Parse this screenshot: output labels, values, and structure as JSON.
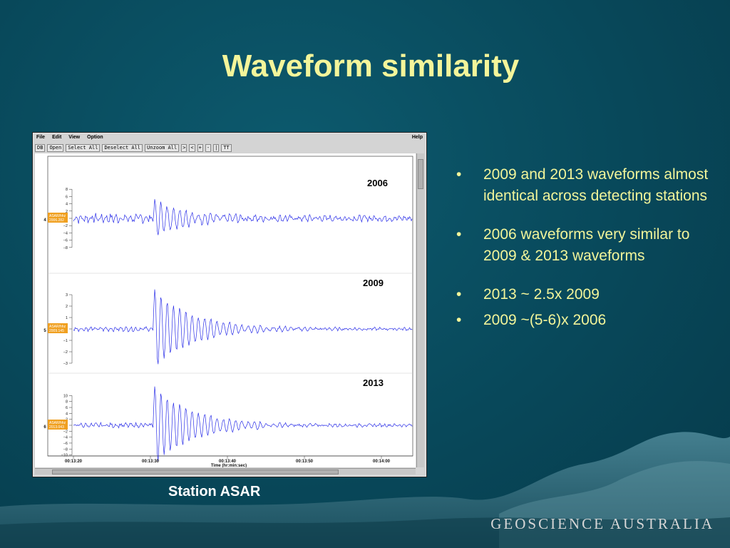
{
  "slide": {
    "title": "Waveform similarity",
    "caption": "Station ASAR",
    "brand": "GEOSCIENCE AUSTRALIA",
    "bullets": [
      "2009 and 2013 waveforms almost identical across detecting stations",
      "2006 waveforms very similar to 2009 & 2013 waveforms",
      "2013  ~ 2.5x 2009",
      "2009 ~(5-6)x 2006"
    ],
    "bullet_symbol": "•"
  },
  "app": {
    "menu": [
      "File",
      "Edit",
      "View",
      "Option"
    ],
    "help": "Help",
    "toolbar": [
      "DB",
      "Open",
      "Select All",
      "Deselect All",
      "Unzoom All",
      ">",
      "<",
      "+",
      "-",
      "|",
      "TT"
    ],
    "traces": [
      {
        "index": "4",
        "year": "2006",
        "station_label": "ASAR/hhz",
        "station_sub": "2006.282",
        "ticks": [
          "8",
          "6",
          "4",
          "2",
          "0",
          "−2",
          "−4",
          "−6",
          "−8"
        ],
        "amplitude": 1.0
      },
      {
        "index": "5",
        "year": "2009",
        "station_label": "ASAR/hhz",
        "station_sub": "2009.145",
        "ticks": [
          "3",
          "2",
          "1",
          "0",
          "−1",
          "−2",
          "−3"
        ],
        "amplitude": 1.0
      },
      {
        "index": "6",
        "year": "2013",
        "station_label": "ASAR/hhz",
        "station_sub": "2013.043",
        "ticks": [
          "10",
          "8",
          "6",
          "4",
          "2",
          "0",
          "−2",
          "−4",
          "−6",
          "−8",
          "−10"
        ],
        "amplitude": 1.0
      }
    ],
    "time_ticks": [
      "00:13:20",
      "00:13:30",
      "00:13:40",
      "00:13:50",
      "00:14:00"
    ],
    "x_axis_label": "Time (hr:min:sec)",
    "trace_color": "#2a2ee8"
  },
  "colors": {
    "title": "#f4f59a",
    "bullet_text": "#f2f59a",
    "background": "#08485a",
    "station_tag": "#f0a020"
  }
}
